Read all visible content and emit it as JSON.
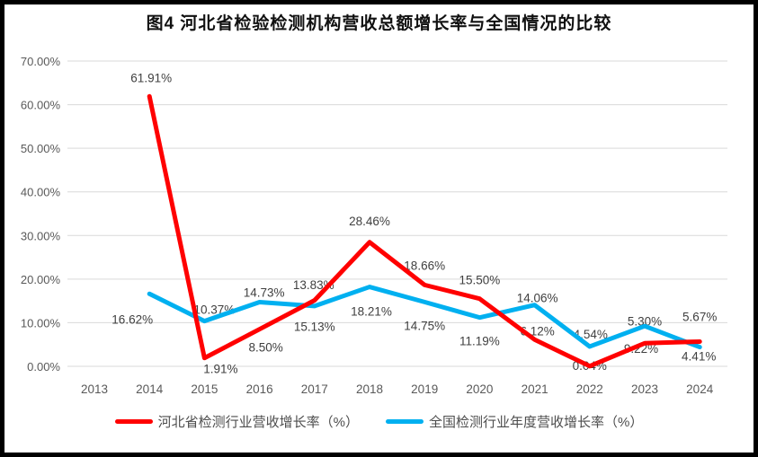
{
  "window": {
    "background": "#FFFFFF",
    "frame_color": "#000000"
  },
  "chart_data": {
    "type": "line",
    "title": "图4 河北省检验检测机构营收总额增长率与全国情况的比较",
    "categories": [
      "2013",
      "2014",
      "2015",
      "2016",
      "2017",
      "2018",
      "2019",
      "2020",
      "2021",
      "2022",
      "2023",
      "2024"
    ],
    "ylim": [
      0,
      70
    ],
    "ytick_step": 10,
    "yticks": [
      "0.00%",
      "10.00%",
      "20.00%",
      "30.00%",
      "40.00%",
      "50.00%",
      "60.00%",
      "70.00%"
    ],
    "grid": true,
    "legend_position": "bottom",
    "colors": {
      "gridline": "#D9D9D9",
      "axis_text": "#595959",
      "data_label_text": "#404040",
      "hebei_red": "#FF0000",
      "national_blue": "#00B0F0"
    },
    "series": [
      {
        "name": "河北省检测行业营收增长率（%）",
        "color": "#FF0000",
        "points": [
          {
            "year": "2014",
            "value": 61.91,
            "label": "61.91%",
            "dx": 2,
            "dy": -21
          },
          {
            "year": "2015",
            "value": 1.91,
            "label": "1.91%",
            "dx": 18,
            "dy": 12
          },
          {
            "year": "2016",
            "value": 8.5,
            "label": "8.50%",
            "dx": 7,
            "dy": 20
          },
          {
            "year": "2017",
            "value": 15.13,
            "label": "15.13%",
            "dx": 0,
            "dy": 29
          },
          {
            "year": "2018",
            "value": 28.46,
            "label": "28.46%",
            "dx": 0,
            "dy": -24
          },
          {
            "year": "2019",
            "value": 18.66,
            "label": "18.66%",
            "dx": 0,
            "dy": -22
          },
          {
            "year": "2020",
            "value": 15.5,
            "label": "15.50%",
            "dx": 0,
            "dy": -21
          },
          {
            "year": "2021",
            "value": 6.12,
            "label": "6.12%",
            "dx": 3,
            "dy": -10
          },
          {
            "year": "2022",
            "value": 0.04,
            "label": "0.04%",
            "dx": 0,
            "dy": -1
          },
          {
            "year": "2023",
            "value": 5.3,
            "label": "5.30%",
            "dx": 0,
            "dy": -25
          },
          {
            "year": "2024",
            "value": 5.67,
            "label": "5.67%",
            "dx": 0,
            "dy": -28
          }
        ]
      },
      {
        "name": "全国检测行业年度营收增长率（%）",
        "color": "#00B0F0",
        "points": [
          {
            "year": "2014",
            "value": 16.62,
            "label": "16.62%",
            "dx": -19,
            "dy": 28
          },
          {
            "year": "2015",
            "value": 10.37,
            "label": "10.37%",
            "dx": 11,
            "dy": -13
          },
          {
            "year": "2016",
            "value": 14.73,
            "label": "14.73%",
            "dx": 5,
            "dy": -11
          },
          {
            "year": "2017",
            "value": 13.83,
            "label": "13.83%",
            "dx": -1,
            "dy": -24
          },
          {
            "year": "2018",
            "value": 18.21,
            "label": "18.21%",
            "dx": 2,
            "dy": 27
          },
          {
            "year": "2019",
            "value": 14.75,
            "label": "14.75%",
            "dx": 0,
            "dy": 26
          },
          {
            "year": "2020",
            "value": 11.19,
            "label": "11.19%",
            "dx": 0,
            "dy": 26
          },
          {
            "year": "2021",
            "value": 14.06,
            "label": "14.06%",
            "dx": 3,
            "dy": -8
          },
          {
            "year": "2022",
            "value": 4.54,
            "label": "4.54%",
            "dx": 1,
            "dy": -14
          },
          {
            "year": "2023",
            "value": 9.22,
            "label": "9.22%",
            "dx": -4,
            "dy": 25
          },
          {
            "year": "2024",
            "value": 4.41,
            "label": "4.41%",
            "dx": -1,
            "dy": 10
          }
        ]
      }
    ]
  }
}
